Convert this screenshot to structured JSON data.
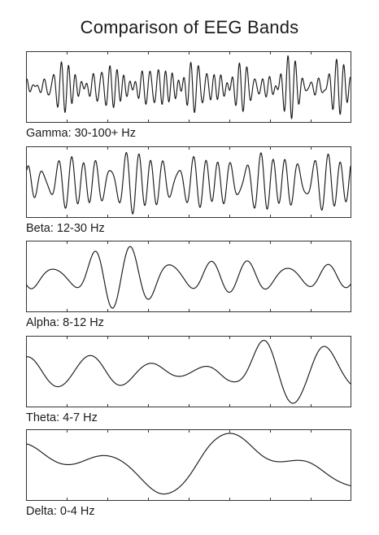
{
  "title": "Comparison of EEG Bands",
  "chart_data": {
    "type": "line",
    "title": "Comparison of EEG Bands",
    "xlabel": "",
    "ylabel": "",
    "grid": false,
    "legend": "none",
    "line_color": "#1a1a1a",
    "frame_color": "#333333",
    "panels": [
      {
        "label": "Gamma: 30-100+ Hz",
        "components": [
          {
            "amp": 0.32,
            "cycles": 40.0,
            "phase": 0.3
          },
          {
            "amp": 0.26,
            "cycles": 47.0,
            "phase": 1.7
          },
          {
            "amp": 0.18,
            "cycles": 53.0,
            "phase": 2.9
          },
          {
            "amp": 0.12,
            "cycles": 33.0,
            "phase": 4.1
          }
        ],
        "envelope": [
          0.75,
          0.95,
          0.8,
          1.0,
          0.85,
          1.05,
          0.9
        ]
      },
      {
        "label": "Beta: 12-30 Hz",
        "components": [
          {
            "amp": 0.4,
            "cycles": 24.0,
            "phase": 0.0
          },
          {
            "amp": 0.3,
            "cycles": 29.0,
            "phase": 1.3
          },
          {
            "amp": 0.18,
            "cycles": 19.0,
            "phase": 2.4
          }
        ],
        "envelope": [
          0.7,
          0.9,
          1.05,
          0.85,
          0.95,
          1.0,
          0.9
        ]
      },
      {
        "label": "Alpha: 8-12 Hz",
        "components": [
          {
            "amp": 0.62,
            "cycles": 8.3,
            "phase": 3.5
          },
          {
            "amp": 0.22,
            "cycles": 11.1,
            "phase": 5.1
          }
        ],
        "envelope": [
          0.55,
          0.45,
          1.0,
          1.05,
          0.55,
          0.5,
          0.6,
          0.45,
          0.35
        ]
      },
      {
        "label": "Theta: 4-7 Hz",
        "components": [
          {
            "amp": 0.42,
            "cycles": 5.5,
            "phase": 1.2
          },
          {
            "amp": 0.2,
            "cycles": 4.1,
            "phase": 2.6
          }
        ],
        "envelope": [
          0.55,
          0.45,
          0.5,
          0.4,
          0.35,
          0.5,
          1.15,
          0.85,
          0.55
        ]
      },
      {
        "label": "Delta: 0-4 Hz",
        "components": [
          {
            "amp": 0.34,
            "cycles": 1.6,
            "phase": 0.9
          },
          {
            "amp": 0.25,
            "cycles": 3.3,
            "phase": 2.1
          },
          {
            "amp": 0.12,
            "cycles": 2.4,
            "phase": 4.2
          }
        ],
        "envelope": [
          0.9,
          0.75,
          0.6,
          0.7,
          0.9,
          1.15,
          1.05,
          0.7
        ]
      }
    ]
  }
}
